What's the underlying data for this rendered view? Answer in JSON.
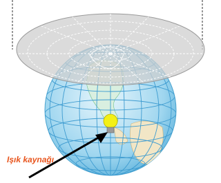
{
  "labels": {
    "light_source": "Işık kaynağı"
  }
}
